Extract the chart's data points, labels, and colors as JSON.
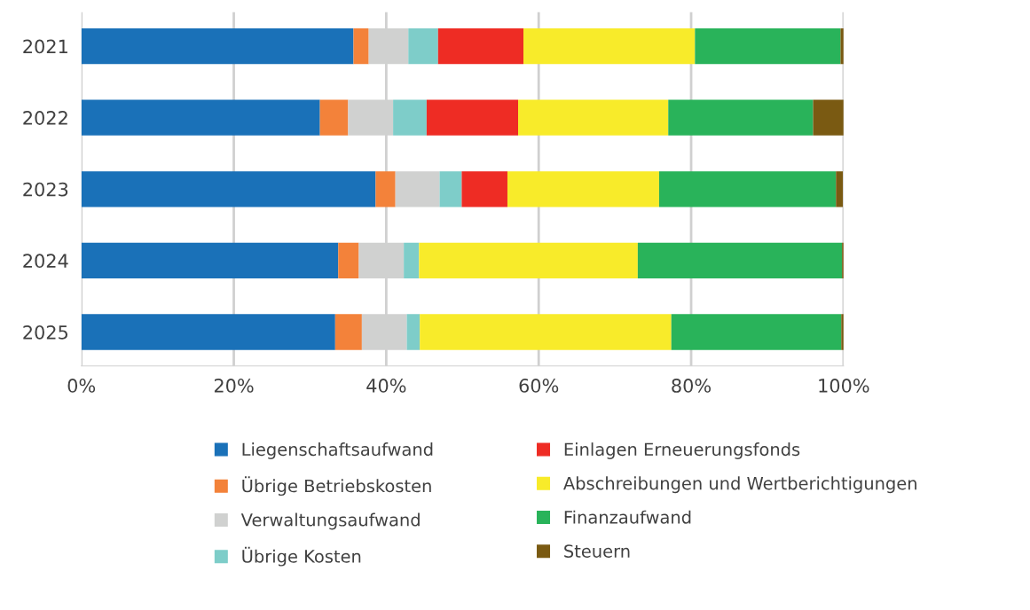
{
  "chart_data": {
    "type": "bar",
    "orientation": "horizontal",
    "stacked": true,
    "categories": [
      "2021",
      "2022",
      "2023",
      "2024",
      "2025"
    ],
    "series": [
      {
        "name": "Liegenschaftsaufwand",
        "color": "#1a71b8",
        "values": [
          35.7,
          31.3,
          38.6,
          33.7,
          33.3
        ]
      },
      {
        "name": "Übrige Betriebskosten",
        "color": "#f3823a",
        "values": [
          2.0,
          3.7,
          2.6,
          2.7,
          3.5
        ]
      },
      {
        "name": "Verwaltungsaufwand",
        "color": "#d0d1d0",
        "values": [
          5.2,
          5.9,
          5.8,
          5.9,
          5.9
        ]
      },
      {
        "name": "Übrige Kosten",
        "color": "#7ecdc9",
        "values": [
          3.9,
          4.4,
          2.9,
          2.0,
          1.7
        ]
      },
      {
        "name": "Einlagen Erneuerungsfonds",
        "color": "#ee2c24",
        "values": [
          11.2,
          12.0,
          6.0,
          0,
          0
        ]
      },
      {
        "name": "Abschreibungen und Wertberichtigungen",
        "color": "#f8eb2a",
        "values": [
          22.5,
          19.7,
          19.9,
          28.7,
          33.0
        ]
      },
      {
        "name": "Finanzaufwand",
        "color": "#29b35a",
        "values": [
          19.1,
          19.0,
          23.2,
          26.8,
          22.3
        ]
      },
      {
        "name": "Steuern",
        "color": "#7a5a12",
        "values": [
          0.4,
          4.0,
          0.9,
          0.2,
          0.3
        ]
      }
    ],
    "xlim": [
      0,
      100
    ],
    "xticks": [
      {
        "value": 0,
        "label": "0%"
      },
      {
        "value": 20,
        "label": "20%"
      },
      {
        "value": 40,
        "label": "40%"
      },
      {
        "value": 60,
        "label": "60%"
      },
      {
        "value": 80,
        "label": "80%"
      },
      {
        "value": 100,
        "label": "100%"
      }
    ],
    "grid": "x",
    "legend": "bottom"
  }
}
